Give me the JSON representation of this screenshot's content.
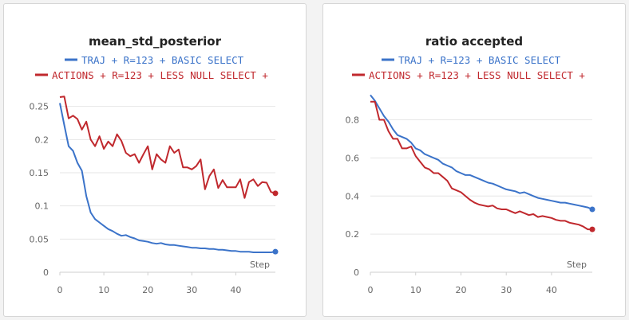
{
  "colors": {
    "blue": "#3b73c9",
    "red": "#c0282d"
  },
  "chart_data": [
    {
      "type": "line",
      "title": "mean_std_posterior",
      "xlabel": "Step",
      "ylabel": "",
      "xlim": [
        0,
        49
      ],
      "ylim": [
        0,
        0.27
      ],
      "xticks": [
        0,
        10,
        20,
        30,
        40
      ],
      "yticks": [
        0,
        0.05,
        0.1,
        0.15,
        0.2,
        0.25
      ],
      "ytick_labels": [
        "0",
        "0.05",
        "0.1",
        "0.15",
        "0.2",
        "0.25"
      ],
      "grid": true,
      "legend_position": "top",
      "series": [
        {
          "name": "TRAJ + R=123 + BASIC SELECT",
          "color": "#3b73c9",
          "values": [
            0.255,
            0.222,
            0.19,
            0.183,
            0.165,
            0.153,
            0.115,
            0.09,
            0.08,
            0.075,
            0.07,
            0.065,
            0.062,
            0.058,
            0.055,
            0.056,
            0.053,
            0.051,
            0.048,
            0.047,
            0.046,
            0.044,
            0.043,
            0.044,
            0.042,
            0.041,
            0.041,
            0.04,
            0.039,
            0.038,
            0.037,
            0.037,
            0.036,
            0.036,
            0.035,
            0.035,
            0.034,
            0.034,
            0.033,
            0.032,
            0.032,
            0.031,
            0.031,
            0.031,
            0.03,
            0.03,
            0.03,
            0.03,
            0.03,
            0.031
          ]
        },
        {
          "name": "ACTIONS + R=123 + LESS NULL SELECT +",
          "color": "#c0282d",
          "values": [
            0.264,
            0.265,
            0.232,
            0.236,
            0.231,
            0.215,
            0.227,
            0.2,
            0.19,
            0.205,
            0.186,
            0.197,
            0.19,
            0.208,
            0.198,
            0.18,
            0.175,
            0.178,
            0.165,
            0.178,
            0.19,
            0.155,
            0.178,
            0.17,
            0.165,
            0.19,
            0.18,
            0.185,
            0.158,
            0.158,
            0.155,
            0.16,
            0.17,
            0.125,
            0.145,
            0.155,
            0.127,
            0.139,
            0.128,
            0.128,
            0.128,
            0.14,
            0.112,
            0.136,
            0.14,
            0.13,
            0.136,
            0.135,
            0.121,
            0.119
          ]
        }
      ]
    },
    {
      "type": "line",
      "title": "ratio accepted",
      "xlabel": "Step",
      "ylabel": "",
      "xlim": [
        0,
        49
      ],
      "ylim": [
        0,
        0.94
      ],
      "xticks": [
        0,
        10,
        20,
        30,
        40
      ],
      "yticks": [
        0,
        0.2,
        0.4,
        0.6,
        0.8
      ],
      "ytick_labels": [
        "0",
        "0.2",
        "0.4",
        "0.6",
        "0.8"
      ],
      "grid": true,
      "legend_position": "top",
      "series": [
        {
          "name": "TRAJ + R=123 + BASIC SELECT",
          "color": "#3b73c9",
          "values": [
            0.93,
            0.9,
            0.86,
            0.82,
            0.79,
            0.75,
            0.72,
            0.71,
            0.7,
            0.68,
            0.65,
            0.64,
            0.62,
            0.61,
            0.6,
            0.59,
            0.57,
            0.56,
            0.55,
            0.53,
            0.52,
            0.51,
            0.51,
            0.5,
            0.49,
            0.48,
            0.47,
            0.465,
            0.455,
            0.445,
            0.435,
            0.43,
            0.425,
            0.415,
            0.42,
            0.41,
            0.4,
            0.39,
            0.385,
            0.38,
            0.375,
            0.37,
            0.365,
            0.365,
            0.36,
            0.355,
            0.35,
            0.345,
            0.34,
            0.33
          ]
        },
        {
          "name": "ACTIONS + R=123 + LESS NULL SELECT +",
          "color": "#c0282d",
          "values": [
            0.895,
            0.895,
            0.8,
            0.8,
            0.74,
            0.7,
            0.7,
            0.65,
            0.65,
            0.66,
            0.61,
            0.58,
            0.55,
            0.54,
            0.52,
            0.52,
            0.5,
            0.48,
            0.44,
            0.43,
            0.42,
            0.4,
            0.38,
            0.365,
            0.355,
            0.35,
            0.345,
            0.35,
            0.335,
            0.33,
            0.33,
            0.32,
            0.31,
            0.32,
            0.31,
            0.3,
            0.305,
            0.29,
            0.295,
            0.29,
            0.285,
            0.275,
            0.27,
            0.27,
            0.26,
            0.255,
            0.25,
            0.24,
            0.225,
            0.225
          ]
        }
      ]
    }
  ]
}
